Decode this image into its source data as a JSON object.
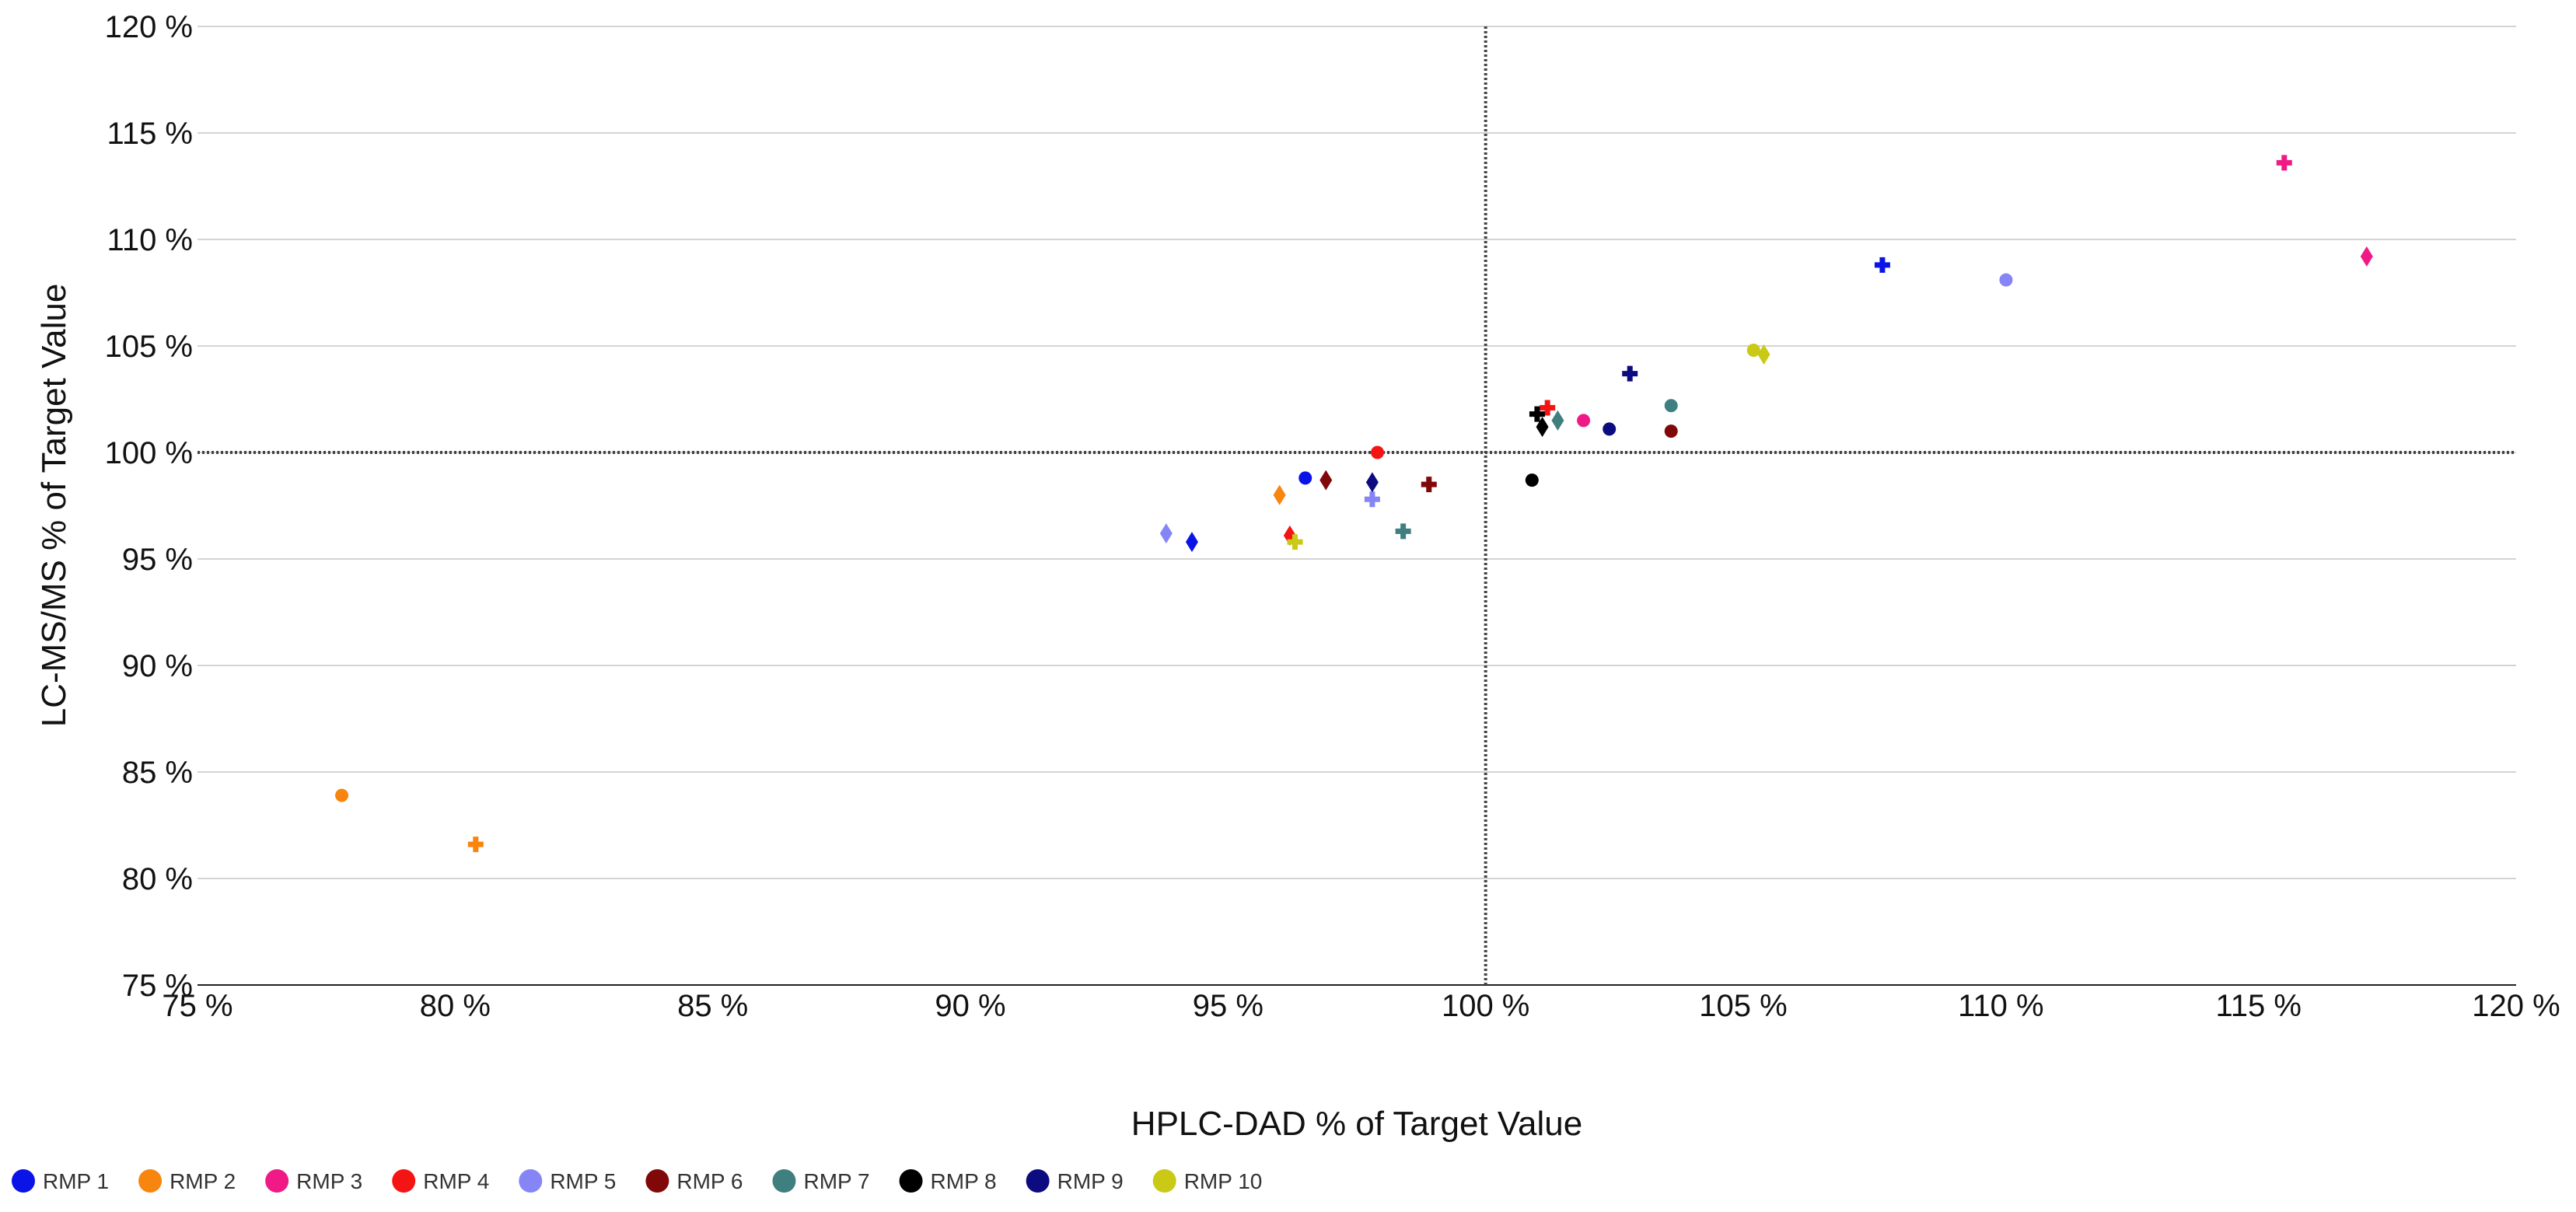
{
  "chart_data": {
    "type": "scatter",
    "title": "",
    "xlabel": "HPLC-DAD % of Target Value",
    "ylabel": "LC-MS/MS % of Target Value",
    "xlim": [
      75,
      120
    ],
    "ylim": [
      75,
      120
    ],
    "x_ticks": [
      75,
      80,
      85,
      90,
      95,
      100,
      105,
      110,
      115,
      120
    ],
    "y_ticks": [
      75,
      80,
      85,
      90,
      95,
      100,
      105,
      110,
      115,
      120
    ],
    "tick_suffix": " %",
    "y_tick_labels": [
      "75 %",
      "80 %",
      "85 %",
      "90 %",
      "95 %",
      "100 %",
      "105 %",
      "110 %",
      "115 %",
      "120 %"
    ],
    "x_tick_labels": [
      "75 %",
      "80 %",
      "85 %",
      "90 %",
      "95 %",
      "100 %",
      "105 %",
      "110 %",
      "115 %",
      "120 %"
    ],
    "grid": "horizontal",
    "reference_lines": {
      "x": 100,
      "y": 100,
      "style": "dotted"
    },
    "legend_position": "bottom-left",
    "marker_shapes": [
      "circle",
      "cross",
      "diamond"
    ],
    "series": [
      {
        "name": "RMP 1",
        "color": "#0a14e6",
        "points": [
          {
            "x": 96.5,
            "y": 98.8,
            "marker": "circle"
          },
          {
            "x": 107.7,
            "y": 108.8,
            "marker": "cross"
          },
          {
            "x": 94.3,
            "y": 95.8,
            "marker": "diamond"
          }
        ]
      },
      {
        "name": "RMP 2",
        "color": "#f7850e",
        "points": [
          {
            "x": 77.8,
            "y": 83.9,
            "marker": "circle"
          },
          {
            "x": 80.4,
            "y": 81.6,
            "marker": "cross"
          },
          {
            "x": 96.0,
            "y": 98.0,
            "marker": "diamond"
          }
        ]
      },
      {
        "name": "RMP 3",
        "color": "#ef1a86",
        "points": [
          {
            "x": 101.9,
            "y": 101.5,
            "marker": "circle"
          },
          {
            "x": 115.5,
            "y": 113.6,
            "marker": "cross"
          },
          {
            "x": 117.1,
            "y": 109.2,
            "marker": "diamond"
          }
        ]
      },
      {
        "name": "RMP 4",
        "color": "#f51414",
        "points": [
          {
            "x": 97.9,
            "y": 100.0,
            "marker": "circle"
          },
          {
            "x": 101.2,
            "y": 102.1,
            "marker": "cross"
          },
          {
            "x": 96.2,
            "y": 96.1,
            "marker": "diamond"
          }
        ]
      },
      {
        "name": "RMP 5",
        "color": "#8585f5",
        "points": [
          {
            "x": 110.1,
            "y": 108.1,
            "marker": "circle"
          },
          {
            "x": 97.8,
            "y": 97.8,
            "marker": "cross"
          },
          {
            "x": 93.8,
            "y": 96.2,
            "marker": "diamond"
          }
        ]
      },
      {
        "name": "RMP 6",
        "color": "#800808",
        "points": [
          {
            "x": 103.6,
            "y": 101.0,
            "marker": "circle"
          },
          {
            "x": 98.9,
            "y": 98.5,
            "marker": "cross"
          },
          {
            "x": 96.9,
            "y": 98.7,
            "marker": "diamond"
          }
        ]
      },
      {
        "name": "RMP 7",
        "color": "#3f7f80",
        "points": [
          {
            "x": 103.6,
            "y": 102.2,
            "marker": "circle"
          },
          {
            "x": 98.4,
            "y": 96.3,
            "marker": "cross"
          },
          {
            "x": 101.4,
            "y": 101.5,
            "marker": "diamond"
          }
        ]
      },
      {
        "name": "RMP 8",
        "color": "#000000",
        "points": [
          {
            "x": 100.9,
            "y": 98.7,
            "marker": "circle"
          },
          {
            "x": 101.0,
            "y": 101.8,
            "marker": "cross"
          },
          {
            "x": 101.1,
            "y": 101.2,
            "marker": "diamond"
          }
        ]
      },
      {
        "name": "RMP 9",
        "color": "#0c0c80",
        "points": [
          {
            "x": 102.4,
            "y": 101.1,
            "marker": "circle"
          },
          {
            "x": 102.8,
            "y": 103.7,
            "marker": "cross"
          },
          {
            "x": 97.8,
            "y": 98.6,
            "marker": "diamond"
          }
        ]
      },
      {
        "name": "RMP 10",
        "color": "#c9c916",
        "points": [
          {
            "x": 105.2,
            "y": 104.8,
            "marker": "circle"
          },
          {
            "x": 96.3,
            "y": 95.8,
            "marker": "cross"
          },
          {
            "x": 105.4,
            "y": 104.6,
            "marker": "diamond"
          }
        ]
      }
    ]
  }
}
